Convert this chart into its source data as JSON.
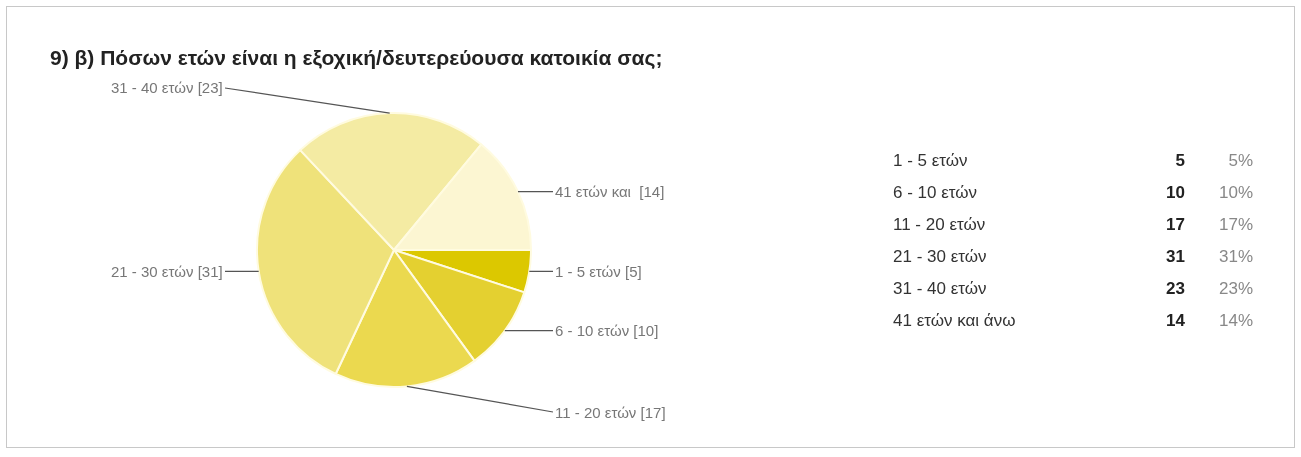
{
  "chart_data": [
    {
      "type": "pie",
      "title": "9) β) Πόσων ετών είναι η εξοχική/δευτερεύουσα κατοικία σας;",
      "categories": [
        null,
        null,
        null,
        null,
        null,
        null
      ],
      "values": [
        5,
        10,
        17,
        31,
        23,
        14
      ],
      "colors": [
        "#dcc800",
        "#e4d030",
        "#ebd94f",
        "#efe27a",
        "#f4eba3",
        "#fcf6d2"
      ],
      "value_labels": [
        "1 - 5 ετών [5]",
        "6 - 10 ετών [10]",
        "11 - 20 ετών [17]",
        "21 - 30 ετών [31]",
        "31 - 40 ετών [23]",
        "41 ετών και  [14]"
      ],
      "legend": false
    },
    {
      "type": "other",
      "categories": [
        "1 - 5 ετών",
        "6 - 10 ετών",
        "11 - 20 ετών",
        "21 - 30 ετών",
        "31 - 40 ετών",
        "41 ετών και άνω"
      ],
      "values": [
        5,
        10,
        17,
        31,
        23,
        14
      ],
      "data_labels": true,
      "annotations": [
        "5%",
        "10%",
        "17%",
        "31%",
        "23%",
        "14%"
      ]
    }
  ]
}
